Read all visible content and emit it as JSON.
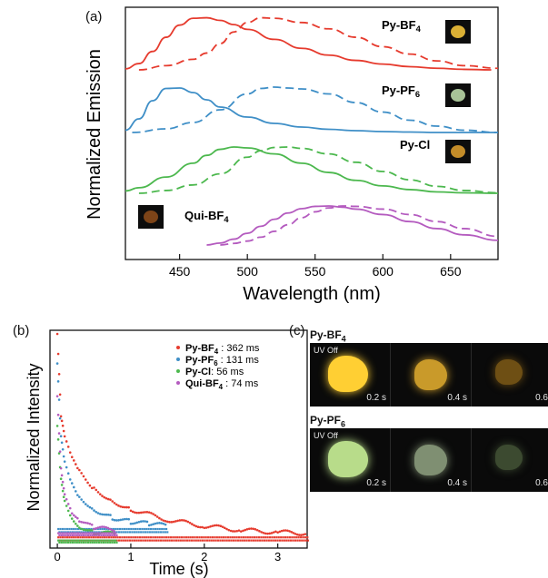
{
  "panel_a": {
    "label": "(a)",
    "xlabel": "Wavelength (nm)",
    "ylabel": "Normalized Emission",
    "xticks": [
      "450",
      "500",
      "550",
      "600",
      "650"
    ],
    "samples": [
      {
        "name": "Py-BF",
        "sub": "4",
        "color": "#e63b2e",
        "crystal": "#f2c23a"
      },
      {
        "name": "Py-PF",
        "sub": "6",
        "color": "#3f8fc7",
        "crystal": "#b9d7a6"
      },
      {
        "name": "Py-Cl",
        "sub": "",
        "color": "#4cb84e",
        "crystal": "#d79a2c"
      },
      {
        "name": "Qui-BF",
        "sub": "4",
        "color": "#b45bbf",
        "crystal": "#8a4a1a"
      }
    ]
  },
  "panel_b": {
    "label": "(b)",
    "xlabel": "Time (s)",
    "ylabel": "Normalized Intensity",
    "xticks": [
      "0",
      "1",
      "2",
      "3"
    ],
    "legend": [
      {
        "name": "Py-BF",
        "sub": "4",
        "value": " : 362 ms",
        "color": "#e63b2e"
      },
      {
        "name": "Py-PF",
        "sub": "6",
        "value": " : 131 ms",
        "color": "#3f8fc7"
      },
      {
        "name": "Py-Cl",
        "sub": "",
        "value": ": 56 ms",
        "color": "#4cb84e"
      },
      {
        "name": "Qui-BF",
        "sub": "4",
        "value": " : 74 ms",
        "color": "#b45bbf"
      }
    ]
  },
  "panel_c": {
    "label": "(c)",
    "rows": [
      {
        "name": "Py-BF",
        "sub": "4",
        "uv": "UV Off",
        "times": [
          "0.2 s",
          "0.4 s",
          "0.6"
        ],
        "colors": [
          "#ffcf33",
          "#c99a2a",
          "#6e4f14"
        ]
      },
      {
        "name": "Py-PF",
        "sub": "6",
        "uv": "UV Off",
        "times": [
          "0.2 s",
          "0.4 s",
          "0.6"
        ],
        "colors": [
          "#b8dc8a",
          "#7f8f72",
          "#3c4a30"
        ]
      }
    ]
  },
  "chart_data": [
    {
      "type": "line",
      "title": "",
      "xlabel": "Wavelength (nm)",
      "ylabel": "Normalized Emission",
      "xlim": [
        410,
        685
      ],
      "y_axis_values_shown": false,
      "series": [
        {
          "name": "Py-BF4",
          "style": "solid",
          "color": "#e63b2e",
          "peak_nm": 463,
          "x": [
            410,
            420,
            430,
            440,
            450,
            460,
            470,
            480,
            490,
            500,
            520,
            540,
            560,
            580,
            600,
            620,
            640,
            660,
            680
          ],
          "y": [
            0.02,
            0.12,
            0.35,
            0.62,
            0.85,
            0.98,
            0.99,
            0.94,
            0.86,
            0.77,
            0.58,
            0.41,
            0.28,
            0.18,
            0.11,
            0.06,
            0.03,
            0.01,
            0.0
          ]
        },
        {
          "name": "Py-BF4",
          "style": "dashed",
          "color": "#e63b2e",
          "peak_nm": 515,
          "x": [
            420,
            440,
            460,
            470,
            480,
            490,
            500,
            510,
            520,
            540,
            560,
            580,
            600,
            620,
            640,
            660,
            685
          ],
          "y": [
            0.0,
            0.08,
            0.2,
            0.32,
            0.5,
            0.72,
            0.9,
            0.99,
            0.98,
            0.9,
            0.78,
            0.62,
            0.44,
            0.3,
            0.17,
            0.08,
            0.03
          ]
        },
        {
          "name": "Py-PF6",
          "style": "solid",
          "color": "#3f8fc7",
          "peak_nm": 444,
          "x": [
            410,
            420,
            430,
            440,
            450,
            460,
            470,
            480,
            500,
            520,
            540,
            560,
            580,
            600,
            620,
            640,
            660,
            685
          ],
          "y": [
            0.05,
            0.3,
            0.7,
            0.97,
            0.98,
            0.88,
            0.72,
            0.56,
            0.34,
            0.2,
            0.12,
            0.07,
            0.04,
            0.02,
            0.01,
            0.0,
            0.0,
            0.0
          ]
        },
        {
          "name": "Py-PF6",
          "style": "dashed",
          "color": "#3f8fc7",
          "peak_nm": 520,
          "x": [
            415,
            440,
            460,
            480,
            500,
            510,
            520,
            530,
            540,
            560,
            580,
            600,
            620,
            640,
            660,
            685
          ],
          "y": [
            0.0,
            0.08,
            0.22,
            0.5,
            0.85,
            0.97,
            1.0,
            0.98,
            0.96,
            0.85,
            0.66,
            0.45,
            0.27,
            0.14,
            0.05,
            0.0
          ]
        },
        {
          "name": "Py-Cl",
          "style": "solid",
          "color": "#4cb84e",
          "peak_nm": 492,
          "x": [
            410,
            420,
            440,
            460,
            470,
            480,
            490,
            500,
            520,
            540,
            560,
            580,
            600,
            620,
            640,
            660,
            685
          ],
          "y": [
            0.05,
            0.12,
            0.35,
            0.65,
            0.82,
            0.95,
            1.0,
            0.98,
            0.85,
            0.65,
            0.45,
            0.28,
            0.16,
            0.08,
            0.03,
            0.01,
            0.0
          ]
        },
        {
          "name": "Py-Cl",
          "style": "dashed",
          "color": "#4cb84e",
          "peak_nm": 525,
          "x": [
            420,
            440,
            460,
            480,
            500,
            510,
            520,
            530,
            540,
            560,
            580,
            600,
            620,
            640,
            660,
            685
          ],
          "y": [
            0.0,
            0.06,
            0.18,
            0.42,
            0.78,
            0.92,
            0.99,
            1.0,
            0.97,
            0.85,
            0.67,
            0.47,
            0.29,
            0.15,
            0.06,
            0.01
          ]
        },
        {
          "name": "Qui-BF4",
          "style": "solid",
          "color": "#b45bbf",
          "peak_nm": 560,
          "x": [
            470,
            480,
            490,
            500,
            510,
            520,
            530,
            540,
            550,
            560,
            570,
            580,
            600,
            620,
            640,
            660,
            685
          ],
          "y": [
            0.0,
            0.05,
            0.15,
            0.3,
            0.48,
            0.66,
            0.82,
            0.93,
            0.99,
            1.0,
            0.97,
            0.92,
            0.78,
            0.6,
            0.42,
            0.26,
            0.12
          ]
        },
        {
          "name": "Qui-BF4",
          "style": "dashed",
          "color": "#b45bbf",
          "peak_nm": 575,
          "x": [
            480,
            490,
            500,
            510,
            520,
            530,
            540,
            550,
            560,
            570,
            580,
            600,
            620,
            640,
            660,
            685
          ],
          "y": [
            0.0,
            0.04,
            0.1,
            0.2,
            0.35,
            0.52,
            0.7,
            0.85,
            0.95,
            1.0,
            0.99,
            0.92,
            0.78,
            0.6,
            0.42,
            0.22
          ]
        }
      ]
    },
    {
      "type": "scatter",
      "title": "",
      "xlabel": "Time (s)",
      "ylabel": "Normalized Intensity",
      "xlim": [
        -0.1,
        3.4
      ],
      "y_axis_values_shown": false,
      "series": [
        {
          "name": "Py-BF4",
          "lifetime_ms": 362,
          "color": "#e63b2e",
          "tail_end_s": 3.4,
          "x": [
            0,
            0.05,
            0.1,
            0.2,
            0.3,
            0.5,
            0.75,
            1.0,
            1.5,
            2.0,
            2.5,
            3.0,
            3.4
          ],
          "y": [
            1.0,
            0.6,
            0.5,
            0.4,
            0.34,
            0.26,
            0.2,
            0.16,
            0.11,
            0.08,
            0.06,
            0.05,
            0.045
          ]
        },
        {
          "name": "Py-PF6",
          "lifetime_ms": 131,
          "color": "#3f8fc7",
          "tail_end_s": 1.5,
          "x": [
            0,
            0.05,
            0.1,
            0.2,
            0.3,
            0.5,
            0.75,
            1.0,
            1.25,
            1.5
          ],
          "y": [
            0.85,
            0.5,
            0.38,
            0.28,
            0.22,
            0.16,
            0.12,
            0.1,
            0.09,
            0.08
          ]
        },
        {
          "name": "Py-Cl",
          "lifetime_ms": 56,
          "color": "#4cb84e",
          "tail_end_s": 0.8,
          "x": [
            0,
            0.05,
            0.1,
            0.2,
            0.3,
            0.5,
            0.8
          ],
          "y": [
            0.55,
            0.3,
            0.2,
            0.12,
            0.08,
            0.05,
            0.04
          ]
        },
        {
          "name": "Qui-BF4",
          "lifetime_ms": 74,
          "color": "#b45bbf",
          "tail_end_s": 0.8,
          "x": [
            0,
            0.05,
            0.1,
            0.2,
            0.3,
            0.5,
            0.8
          ],
          "y": [
            0.7,
            0.36,
            0.24,
            0.15,
            0.11,
            0.07,
            0.06
          ]
        }
      ]
    }
  ]
}
